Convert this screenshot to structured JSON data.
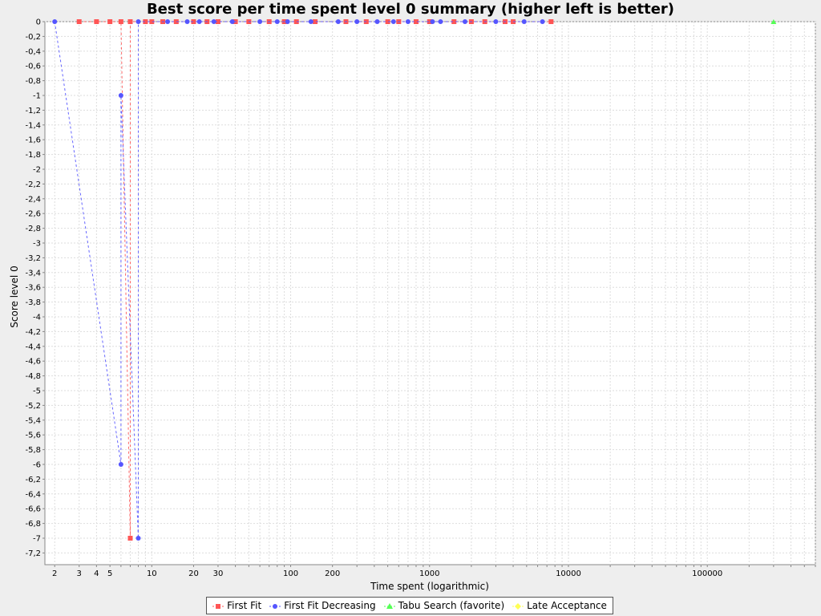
{
  "chart_data": {
    "type": "line",
    "title": "Best score per time spent level 0 summary (higher left is better)",
    "xlabel": "Time spent (logarithmic)",
    "ylabel": "Score level 0",
    "x_scale": "log",
    "xlim": [
      1.7,
      600000
    ],
    "ylim": [
      -7.3,
      0
    ],
    "y_ticks": [
      "0",
      "-0,2",
      "-0,4",
      "-0,6",
      "-0,8",
      "-1",
      "-1,2",
      "-1,4",
      "-1,6",
      "-1,8",
      "-2",
      "-2,2",
      "-2,4",
      "-2,6",
      "-2,8",
      "-3",
      "-3,2",
      "-3,4",
      "-3,6",
      "-3,8",
      "-4",
      "-4,2",
      "-4,4",
      "-4,6",
      "-4,8",
      "-5",
      "-5,2",
      "-5,4",
      "-5,6",
      "-5,8",
      "-6",
      "-6,2",
      "-6,4",
      "-6,6",
      "-6,8",
      "-7",
      "-7,2"
    ],
    "x_ticks": [
      {
        "v": 2,
        "label": "2"
      },
      {
        "v": 3,
        "label": "3"
      },
      {
        "v": 4,
        "label": "4"
      },
      {
        "v": 5,
        "label": "5"
      },
      {
        "v": 10,
        "label": "10"
      },
      {
        "v": 20,
        "label": "20"
      },
      {
        "v": 30,
        "label": "30"
      },
      {
        "v": 100,
        "label": "100"
      },
      {
        "v": 200,
        "label": "200"
      },
      {
        "v": 1000,
        "label": "1000"
      },
      {
        "v": 10000,
        "label": "10000"
      },
      {
        "v": 100000,
        "label": "100000"
      }
    ],
    "grid": true,
    "legend_position": "bottom",
    "series": [
      {
        "name": "First Fit",
        "color": "#ff5555",
        "marker": "square",
        "points": [
          [
            3,
            0
          ],
          [
            4,
            0
          ],
          [
            5,
            0
          ],
          [
            6,
            0
          ],
          [
            7,
            -7
          ],
          [
            7,
            0
          ],
          [
            9,
            0
          ],
          [
            10,
            0
          ],
          [
            12,
            0
          ],
          [
            15,
            0
          ],
          [
            20,
            0
          ],
          [
            25,
            0
          ],
          [
            30,
            0
          ],
          [
            40,
            0
          ],
          [
            50,
            0
          ],
          [
            70,
            0
          ],
          [
            90,
            0
          ],
          [
            110,
            0
          ],
          [
            150,
            0
          ],
          [
            250,
            0
          ],
          [
            350,
            0
          ],
          [
            500,
            0
          ],
          [
            600,
            0
          ],
          [
            800,
            0
          ],
          [
            1000,
            0
          ],
          [
            1500,
            0
          ],
          [
            2000,
            0
          ],
          [
            2500,
            0
          ],
          [
            3500,
            0
          ],
          [
            4000,
            0
          ],
          [
            7500,
            0
          ]
        ]
      },
      {
        "name": "First Fit Decreasing",
        "color": "#5555ff",
        "marker": "circle",
        "points": [
          [
            2,
            0
          ],
          [
            6,
            -6
          ],
          [
            6,
            -1
          ],
          [
            8,
            -7
          ],
          [
            8,
            0
          ],
          [
            13,
            0
          ],
          [
            18,
            0
          ],
          [
            22,
            0
          ],
          [
            28,
            0
          ],
          [
            38,
            0
          ],
          [
            60,
            0
          ],
          [
            80,
            0
          ],
          [
            95,
            0
          ],
          [
            140,
            0
          ],
          [
            220,
            0
          ],
          [
            300,
            0
          ],
          [
            420,
            0
          ],
          [
            550,
            0
          ],
          [
            700,
            0
          ],
          [
            1050,
            0
          ],
          [
            1200,
            0
          ],
          [
            1800,
            0
          ],
          [
            3000,
            0
          ],
          [
            4800,
            0
          ],
          [
            6500,
            0
          ]
        ]
      },
      {
        "name": "Tabu Search (favorite)",
        "color": "#55ff55",
        "marker": "triangle",
        "points": [
          [
            300000,
            0
          ]
        ]
      },
      {
        "name": "Late Acceptance",
        "color": "#ffff55",
        "marker": "diamond",
        "points": []
      }
    ]
  }
}
